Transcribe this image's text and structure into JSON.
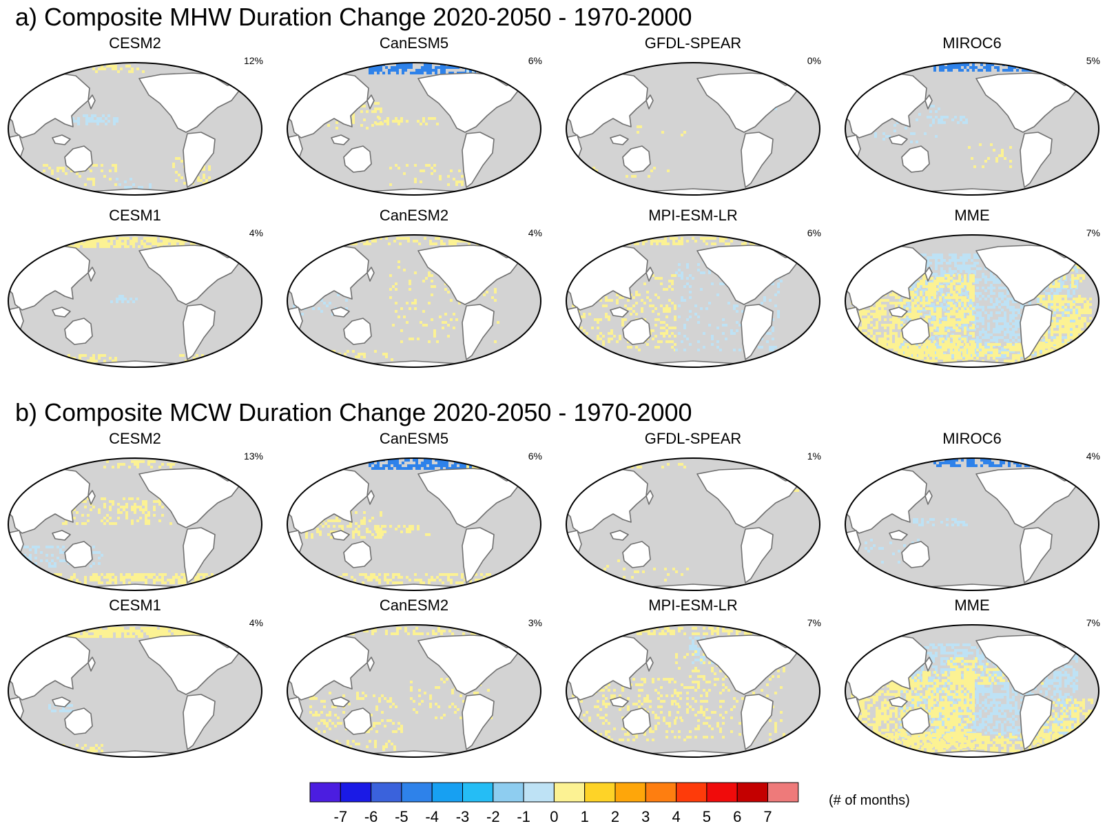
{
  "sections": [
    {
      "id": "a",
      "title": "a) Composite MHW Duration Change 2020-2050 - 1970-2000",
      "panels": [
        {
          "model": "CESM2",
          "percent": "12%"
        },
        {
          "model": "CanESM5",
          "percent": "6%"
        },
        {
          "model": "GFDL-SPEAR",
          "percent": "0%"
        },
        {
          "model": "MIROC6",
          "percent": "5%"
        },
        {
          "model": "CESM1",
          "percent": "4%"
        },
        {
          "model": "CanESM2",
          "percent": "4%"
        },
        {
          "model": "MPI-ESM-LR",
          "percent": "6%"
        },
        {
          "model": "MME",
          "percent": "7%"
        }
      ]
    },
    {
      "id": "b",
      "title": "b) Composite MCW Duration Change 2020-2050 - 1970-2000",
      "panels": [
        {
          "model": "CESM2",
          "percent": "13%"
        },
        {
          "model": "CanESM5",
          "percent": "6%"
        },
        {
          "model": "GFDL-SPEAR",
          "percent": "1%"
        },
        {
          "model": "MIROC6",
          "percent": "4%"
        },
        {
          "model": "CESM1",
          "percent": "4%"
        },
        {
          "model": "CanESM2",
          "percent": "3%"
        },
        {
          "model": "MPI-ESM-LR",
          "percent": "7%"
        },
        {
          "model": "MME",
          "percent": "7%"
        }
      ]
    }
  ],
  "colorbar": {
    "ticks": [
      "-7",
      "-6",
      "-5",
      "-4",
      "-3",
      "-2",
      "-1",
      "0",
      "1",
      "2",
      "3",
      "4",
      "5",
      "6",
      "7"
    ],
    "colors": [
      "#4b1de0",
      "#1a1ae6",
      "#3a62dc",
      "#2e82ea",
      "#17a0f2",
      "#25bdf5",
      "#8ecdf0",
      "#bee2f5",
      "#fcf293",
      "#fed327",
      "#fea60a",
      "#fe7e10",
      "#fe3b0a",
      "#f00b0b",
      "#c40000",
      "#ee7a7a"
    ],
    "unit": "(# of months)"
  },
  "map_colors": {
    "ocean": "#d3d3d3",
    "land": "#ffffff",
    "coast": "#6f6f6f",
    "positive": "#fcf293",
    "negative": "#bee2f5",
    "strong_negative": "#2e82ea"
  },
  "chart_data": {
    "type": "heatmap",
    "title": "Composite heatwave / coldwave duration change 2020-2050 minus 1970-2000",
    "variable": "duration change",
    "units": "# of months",
    "colorbar_range": [
      -7,
      7
    ],
    "colorbar_ticks": [
      -7,
      -6,
      -5,
      -4,
      -3,
      -2,
      -1,
      0,
      1,
      2,
      3,
      4,
      5,
      6,
      7
    ],
    "panels": [
      {
        "section": "a",
        "event": "MHW",
        "model": "CESM2",
        "percent_significant": 12
      },
      {
        "section": "a",
        "event": "MHW",
        "model": "CanESM5",
        "percent_significant": 6
      },
      {
        "section": "a",
        "event": "MHW",
        "model": "GFDL-SPEAR",
        "percent_significant": 0
      },
      {
        "section": "a",
        "event": "MHW",
        "model": "MIROC6",
        "percent_significant": 5
      },
      {
        "section": "a",
        "event": "MHW",
        "model": "CESM1",
        "percent_significant": 4
      },
      {
        "section": "a",
        "event": "MHW",
        "model": "CanESM2",
        "percent_significant": 4
      },
      {
        "section": "a",
        "event": "MHW",
        "model": "MPI-ESM-LR",
        "percent_significant": 6
      },
      {
        "section": "a",
        "event": "MHW",
        "model": "MME",
        "percent_significant": 7
      },
      {
        "section": "b",
        "event": "MCW",
        "model": "CESM2",
        "percent_significant": 13
      },
      {
        "section": "b",
        "event": "MCW",
        "model": "CanESM5",
        "percent_significant": 6
      },
      {
        "section": "b",
        "event": "MCW",
        "model": "GFDL-SPEAR",
        "percent_significant": 1
      },
      {
        "section": "b",
        "event": "MCW",
        "model": "MIROC6",
        "percent_significant": 4
      },
      {
        "section": "b",
        "event": "MCW",
        "model": "CESM1",
        "percent_significant": 4
      },
      {
        "section": "b",
        "event": "MCW",
        "model": "CanESM2",
        "percent_significant": 3
      },
      {
        "section": "b",
        "event": "MCW",
        "model": "MPI-ESM-LR",
        "percent_significant": 7
      },
      {
        "section": "b",
        "event": "MCW",
        "model": "MME",
        "percent_significant": 7
      }
    ]
  }
}
